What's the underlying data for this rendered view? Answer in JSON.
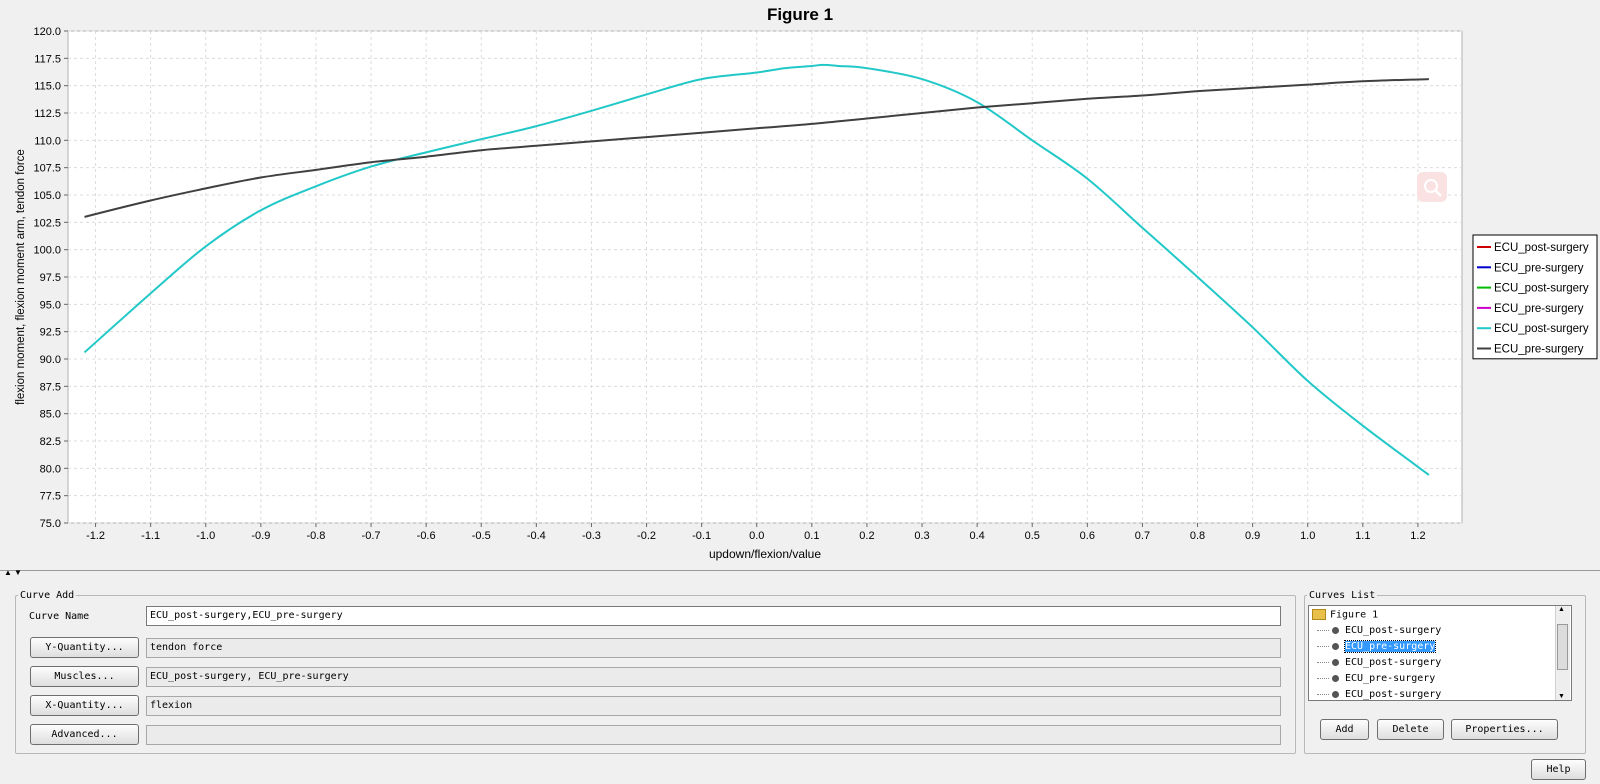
{
  "chart_data": {
    "type": "line",
    "title": "Figure 1",
    "xlabel": "updown/flexion/value",
    "ylabel": "flexion moment, flexion moment arm, tendon force",
    "xlim": [
      -1.25,
      1.28
    ],
    "ylim": [
      75.0,
      120.0
    ],
    "x_ticks": [
      -1.2,
      -1.1,
      -1.0,
      -0.9,
      -0.8,
      -0.7,
      -0.6,
      -0.5,
      -0.4,
      -0.3,
      -0.2,
      -0.1,
      0.0,
      0.1,
      0.2,
      0.3,
      0.4,
      0.5,
      0.6,
      0.7,
      0.8,
      0.9,
      1.0,
      1.1,
      1.2
    ],
    "y_ticks": [
      75.0,
      77.5,
      80.0,
      82.5,
      85.0,
      87.5,
      90.0,
      92.5,
      95.0,
      97.5,
      100.0,
      102.5,
      105.0,
      107.5,
      110.0,
      112.5,
      115.0,
      117.5,
      120.0
    ],
    "grid": true,
    "legend_position": "right",
    "series": [
      {
        "name": "ECU_post-surgery",
        "color": "#cc0000",
        "x": [],
        "y": []
      },
      {
        "name": "ECU_pre-surgery",
        "color": "#0000cc",
        "x": [],
        "y": []
      },
      {
        "name": "ECU_post-surgery",
        "color": "#00bb00",
        "x": [],
        "y": []
      },
      {
        "name": "ECU_pre-surgery",
        "color": "#cc00cc",
        "x": [],
        "y": []
      },
      {
        "name": "ECU_post-surgery",
        "color": "#22c8c8",
        "x": [
          -1.22,
          -1.1,
          -1.0,
          -0.9,
          -0.8,
          -0.7,
          -0.6,
          -0.5,
          -0.4,
          -0.3,
          -0.2,
          -0.1,
          0.0,
          0.05,
          0.1,
          0.12,
          0.15,
          0.2,
          0.3,
          0.4,
          0.5,
          0.6,
          0.7,
          0.8,
          0.9,
          1.0,
          1.1,
          1.22
        ],
        "y": [
          90.6,
          96.0,
          100.3,
          103.6,
          105.8,
          107.6,
          108.9,
          110.1,
          111.3,
          112.7,
          114.2,
          115.6,
          116.2,
          116.6,
          116.8,
          116.9,
          116.8,
          116.6,
          115.6,
          113.5,
          110.0,
          106.5,
          102.0,
          97.5,
          92.9,
          88.0,
          83.9,
          79.4
        ]
      },
      {
        "name": "ECU_pre-surgery",
        "color": "#404040",
        "x": [
          -1.22,
          -1.1,
          -1.0,
          -0.9,
          -0.8,
          -0.7,
          -0.6,
          -0.5,
          -0.4,
          -0.3,
          -0.2,
          -0.1,
          0.0,
          0.1,
          0.2,
          0.3,
          0.4,
          0.5,
          0.6,
          0.7,
          0.8,
          0.9,
          1.0,
          1.1,
          1.22
        ],
        "y": [
          103.0,
          104.5,
          105.6,
          106.6,
          107.3,
          108.0,
          108.5,
          109.1,
          109.5,
          109.9,
          110.3,
          110.7,
          111.1,
          111.5,
          112.0,
          112.5,
          113.0,
          113.4,
          113.8,
          114.1,
          114.5,
          114.8,
          115.1,
          115.4,
          115.6
        ]
      }
    ]
  },
  "panel": {
    "curve_add": {
      "legend": "Curve Add",
      "curve_name_label": "Curve Name",
      "curve_name_value": "ECU_post-surgery,ECU_pre-surgery",
      "y_quantity_button": "Y-Quantity...",
      "y_quantity_value": "tendon force",
      "muscles_button": "Muscles...",
      "muscles_value": "ECU_post-surgery, ECU_pre-surgery",
      "x_quantity_button": "X-Quantity...",
      "x_quantity_value": "flexion",
      "advanced_button": "Advanced...",
      "advanced_value": ""
    },
    "curves_list": {
      "legend": "Curves List",
      "root": "Figure 1",
      "items": [
        "ECU_post-surgery",
        "ECU_pre-surgery",
        "ECU_post-surgery",
        "ECU_pre-surgery",
        "ECU_post-surgery"
      ],
      "selected_index": 1,
      "add_button": "Add",
      "delete_button": "Delete",
      "properties_button": "Properties..."
    },
    "help_button": "Help"
  }
}
